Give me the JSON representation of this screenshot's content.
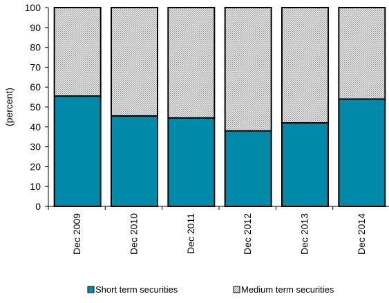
{
  "chart_data": {
    "type": "bar",
    "stacked": true,
    "percent_stacked": true,
    "categories": [
      "Dec 2009",
      "Dec 2010",
      "Dec 2011",
      "Dec 2012",
      "Dec 2013",
      "Dec 2014"
    ],
    "series": [
      {
        "name": "Short term securities",
        "values": [
          55.5,
          45.5,
          44.5,
          38,
          42,
          54
        ],
        "color": "#0089A8",
        "pattern": "solid"
      },
      {
        "name": "Medium term securities",
        "values": [
          44.5,
          54.5,
          55.5,
          62,
          58,
          46
        ],
        "color": "#D0D0D0",
        "pattern": "dotted-gray"
      }
    ],
    "title": "",
    "xlabel": "",
    "ylabel": "(percent)",
    "ylim": [
      0,
      100
    ],
    "yticks": [
      0,
      10,
      20,
      30,
      40,
      50,
      60,
      70,
      80,
      90,
      100
    ],
    "grid": false,
    "legend_position": "bottom"
  }
}
